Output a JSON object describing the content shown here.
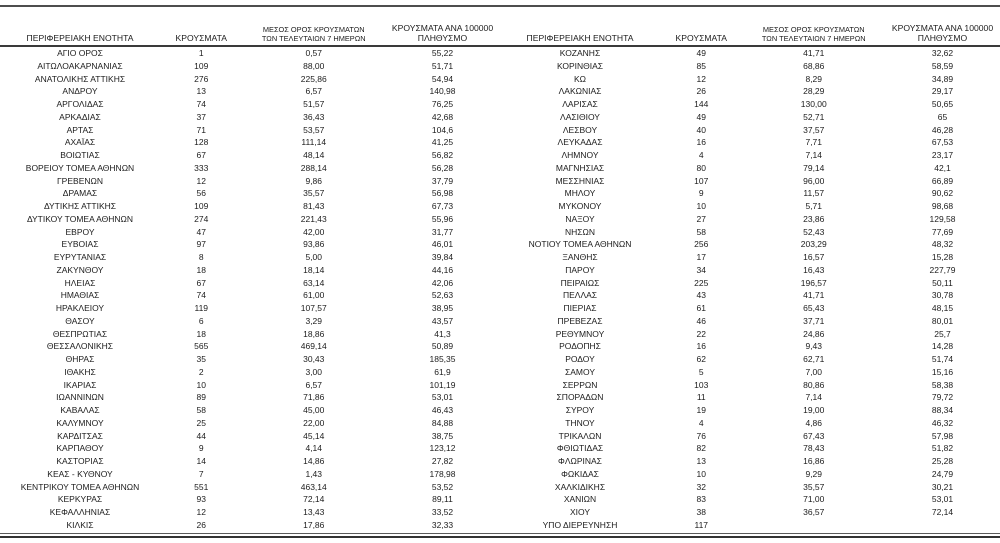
{
  "table": {
    "headers": {
      "region": "ΠΕΡΙΦΕΡΕΙΑΚΗ ΕΝΟΤΗΤΑ",
      "cases": "ΚΡΟΥΣΜΑΤΑ",
      "avg7_line1": "ΜΕΣΟΣ ΟΡΟΣ ΚΡΟΥΣΜΑΤΩΝ",
      "avg7_line2": "ΤΩΝ ΤΕΛΕΥΤΑΙΩΝ 7 ΗΜΕΡΩΝ",
      "per100k_line1": "ΚΡΟΥΣΜΑΤΑ ΑΝΑ 100000",
      "per100k_line2": "ΠΛΗΘΥΣΜΟ"
    },
    "left_rows": [
      [
        "ΑΓΙΟ ΟΡΟΣ",
        "1",
        "0,57",
        "55,22"
      ],
      [
        "ΑΙΤΩΛΟΑΚΑΡΝΑΝΙΑΣ",
        "109",
        "88,00",
        "51,71"
      ],
      [
        "ΑΝΑΤΟΛΙΚΗΣ ΑΤΤΙΚΗΣ",
        "276",
        "225,86",
        "54,94"
      ],
      [
        "ΑΝΔΡΟΥ",
        "13",
        "6,57",
        "140,98"
      ],
      [
        "ΑΡΓΟΛΙΔΑΣ",
        "74",
        "51,57",
        "76,25"
      ],
      [
        "ΑΡΚΑΔΙΑΣ",
        "37",
        "36,43",
        "42,68"
      ],
      [
        "ΑΡΤΑΣ",
        "71",
        "53,57",
        "104,6"
      ],
      [
        "ΑΧΑΪΑΣ",
        "128",
        "111,14",
        "41,25"
      ],
      [
        "ΒΟΙΩΤΙΑΣ",
        "67",
        "48,14",
        "56,82"
      ],
      [
        "ΒΟΡΕΙΟΥ ΤΟΜΕΑ ΑΘΗΝΩΝ",
        "333",
        "288,14",
        "56,28"
      ],
      [
        "ΓΡΕΒΕΝΩΝ",
        "12",
        "9,86",
        "37,79"
      ],
      [
        "ΔΡΑΜΑΣ",
        "56",
        "35,57",
        "56,98"
      ],
      [
        "ΔΥΤΙΚΗΣ ΑΤΤΙΚΗΣ",
        "109",
        "81,43",
        "67,73"
      ],
      [
        "ΔΥΤΙΚΟΥ ΤΟΜΕΑ ΑΘΗΝΩΝ",
        "274",
        "221,43",
        "55,96"
      ],
      [
        "ΕΒΡΟΥ",
        "47",
        "42,00",
        "31,77"
      ],
      [
        "ΕΥΒΟΙΑΣ",
        "97",
        "93,86",
        "46,01"
      ],
      [
        "ΕΥΡΥΤΑΝΙΑΣ",
        "8",
        "5,00",
        "39,84"
      ],
      [
        "ΖΑΚΥΝΘΟΥ",
        "18",
        "18,14",
        "44,16"
      ],
      [
        "ΗΛΕΙΑΣ",
        "67",
        "63,14",
        "42,06"
      ],
      [
        "ΗΜΑΘΙΑΣ",
        "74",
        "61,00",
        "52,63"
      ],
      [
        "ΗΡΑΚΛΕΙΟΥ",
        "119",
        "107,57",
        "38,95"
      ],
      [
        "ΘΑΣΟΥ",
        "6",
        "3,29",
        "43,57"
      ],
      [
        "ΘΕΣΠΡΩΤΙΑΣ",
        "18",
        "18,86",
        "41,3"
      ],
      [
        "ΘΕΣΣΑΛΟΝΙΚΗΣ",
        "565",
        "469,14",
        "50,89"
      ],
      [
        "ΘΗΡΑΣ",
        "35",
        "30,43",
        "185,35"
      ],
      [
        "ΙΘΑΚΗΣ",
        "2",
        "3,00",
        "61,9"
      ],
      [
        "ΙΚΑΡΙΑΣ",
        "10",
        "6,57",
        "101,19"
      ],
      [
        "ΙΩΑΝΝΙΝΩΝ",
        "89",
        "71,86",
        "53,01"
      ],
      [
        "ΚΑΒΑΛΑΣ",
        "58",
        "45,00",
        "46,43"
      ],
      [
        "ΚΑΛΥΜΝΟΥ",
        "25",
        "22,00",
        "84,88"
      ],
      [
        "ΚΑΡΔΙΤΣΑΣ",
        "44",
        "45,14",
        "38,75"
      ],
      [
        "ΚΑΡΠΑΘΟΥ",
        "9",
        "4,14",
        "123,12"
      ],
      [
        "ΚΑΣΤΟΡΙΑΣ",
        "14",
        "14,86",
        "27,82"
      ],
      [
        "ΚΕΑΣ - ΚΥΘΝΟΥ",
        "7",
        "1,43",
        "178,98"
      ],
      [
        "ΚΕΝΤΡΙΚΟΥ ΤΟΜΕΑ ΑΘΗΝΩΝ",
        "551",
        "463,14",
        "53,52"
      ],
      [
        "ΚΕΡΚΥΡΑΣ",
        "93",
        "72,14",
        "89,11"
      ],
      [
        "ΚΕΦΑΛΛΗΝΙΑΣ",
        "12",
        "13,43",
        "33,52"
      ],
      [
        "ΚΙΛΚΙΣ",
        "26",
        "17,86",
        "32,33"
      ]
    ],
    "right_rows": [
      [
        "ΚΟΖΑΝΗΣ",
        "49",
        "41,71",
        "32,62"
      ],
      [
        "ΚΟΡΙΝΘΙΑΣ",
        "85",
        "68,86",
        "58,59"
      ],
      [
        "ΚΩ",
        "12",
        "8,29",
        "34,89"
      ],
      [
        "ΛΑΚΩΝΙΑΣ",
        "26",
        "28,29",
        "29,17"
      ],
      [
        "ΛΑΡΙΣΑΣ",
        "144",
        "130,00",
        "50,65"
      ],
      [
        "ΛΑΣΙΘΙΟΥ",
        "49",
        "52,71",
        "65"
      ],
      [
        "ΛΕΣΒΟΥ",
        "40",
        "37,57",
        "46,28"
      ],
      [
        "ΛΕΥΚΑΔΑΣ",
        "16",
        "7,71",
        "67,53"
      ],
      [
        "ΛΗΜΝΟΥ",
        "4",
        "7,14",
        "23,17"
      ],
      [
        "ΜΑΓΝΗΣΙΑΣ",
        "80",
        "79,14",
        "42,1"
      ],
      [
        "ΜΕΣΣΗΝΙΑΣ",
        "107",
        "96,00",
        "66,89"
      ],
      [
        "ΜΗΛΟΥ",
        "9",
        "11,57",
        "90,62"
      ],
      [
        "ΜΥΚΟΝΟΥ",
        "10",
        "5,71",
        "98,68"
      ],
      [
        "ΝΑΞΟΥ",
        "27",
        "23,86",
        "129,58"
      ],
      [
        "ΝΗΣΩΝ",
        "58",
        "52,43",
        "77,69"
      ],
      [
        "ΝΟΤΙΟΥ ΤΟΜΕΑ ΑΘΗΝΩΝ",
        "256",
        "203,29",
        "48,32"
      ],
      [
        "ΞΑΝΘΗΣ",
        "17",
        "16,57",
        "15,28"
      ],
      [
        "ΠΑΡΟΥ",
        "34",
        "16,43",
        "227,79"
      ],
      [
        "ΠΕΙΡΑΙΩΣ",
        "225",
        "196,57",
        "50,11"
      ],
      [
        "ΠΕΛΛΑΣ",
        "43",
        "41,71",
        "30,78"
      ],
      [
        "ΠΙΕΡΙΑΣ",
        "61",
        "65,43",
        "48,15"
      ],
      [
        "ΠΡΕΒΕΖΑΣ",
        "46",
        "37,71",
        "80,01"
      ],
      [
        "ΡΕΘΥΜΝΟΥ",
        "22",
        "24,86",
        "25,7"
      ],
      [
        "ΡΟΔΟΠΗΣ",
        "16",
        "9,43",
        "14,28"
      ],
      [
        "ΡΟΔΟΥ",
        "62",
        "62,71",
        "51,74"
      ],
      [
        "ΣΑΜΟΥ",
        "5",
        "7,00",
        "15,16"
      ],
      [
        "ΣΕΡΡΩΝ",
        "103",
        "80,86",
        "58,38"
      ],
      [
        "ΣΠΟΡΑΔΩΝ",
        "11",
        "7,14",
        "79,72"
      ],
      [
        "ΣΥΡΟΥ",
        "19",
        "19,00",
        "88,34"
      ],
      [
        "ΤΗΝΟΥ",
        "4",
        "4,86",
        "46,32"
      ],
      [
        "ΤΡΙΚΑΛΩΝ",
        "76",
        "67,43",
        "57,98"
      ],
      [
        "ΦΘΙΩΤΙΔΑΣ",
        "82",
        "78,43",
        "51,82"
      ],
      [
        "ΦΛΩΡΙΝΑΣ",
        "13",
        "16,86",
        "25,28"
      ],
      [
        "ΦΩΚΙΔΑΣ",
        "10",
        "9,29",
        "24,79"
      ],
      [
        "ΧΑΛΚΙΔΙΚΗΣ",
        "32",
        "35,57",
        "30,21"
      ],
      [
        "ΧΑΝΙΩΝ",
        "83",
        "71,00",
        "53,01"
      ],
      [
        "ΧΙΟΥ",
        "38",
        "36,57",
        "72,14"
      ],
      [
        "ΥΠΟ ΔΙΕΡΕΥΝΗΣΗ",
        "117",
        "",
        ""
      ]
    ],
    "colors": {
      "text": "#1c1c1c",
      "rule": "#3a3a3a",
      "background": "#ffffff"
    }
  }
}
